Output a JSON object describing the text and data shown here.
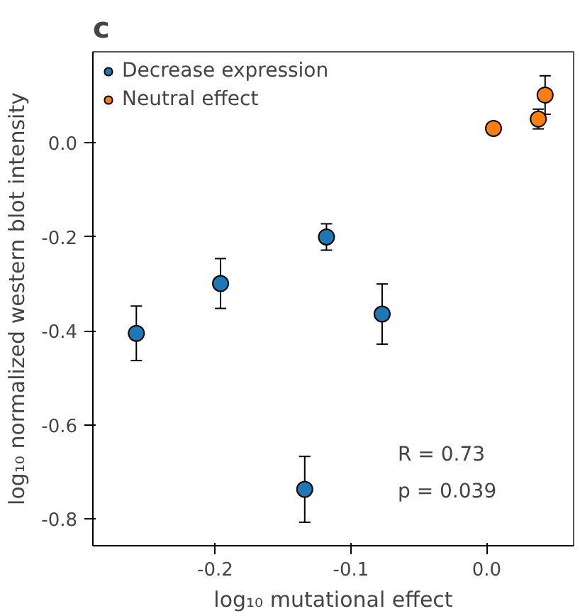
{
  "chart_data": {
    "type": "scatter",
    "title": "c",
    "xlabel": "log₁₀ mutational effect",
    "ylabel": "log₁₀ normalized western blot intensity",
    "xlim": [
      -0.29,
      0.064
    ],
    "xticks": [
      {
        "value": -0.2,
        "label": "-0.2"
      },
      {
        "value": -0.1,
        "label": "-0.1"
      },
      {
        "value": 0.0,
        "label": "0.0"
      }
    ],
    "ylim": [
      -0.857,
      0.194
    ],
    "yticks": [
      {
        "value": -0.8,
        "label": "-0.8"
      },
      {
        "value": -0.6,
        "label": "-0.6"
      },
      {
        "value": -0.4,
        "label": "-0.4"
      },
      {
        "value": -0.2,
        "label": "-0.2"
      },
      {
        "value": 0.0,
        "label": "0.0"
      }
    ],
    "series": [
      {
        "name": "Decrease expression",
        "color": "#1f77b4",
        "x": [
          -0.258,
          -0.196,
          -0.118,
          -0.077,
          -0.134
        ],
        "values": [
          -0.405,
          -0.299,
          -0.2,
          -0.364,
          -0.737
        ],
        "errors": [
          0.058,
          0.053,
          0.028,
          0.064,
          0.07
        ]
      },
      {
        "name": "Neutral effect",
        "color": "#ff7f0e",
        "x": [
          0.005,
          0.038,
          0.043
        ],
        "values": [
          0.031,
          0.051,
          0.102
        ],
        "errors": [
          null,
          0.021,
          0.041
        ]
      }
    ],
    "annotations": [
      "R = 0.73",
      "p = 0.039"
    ],
    "marker": "circle",
    "grid": false,
    "legend": "top left"
  }
}
